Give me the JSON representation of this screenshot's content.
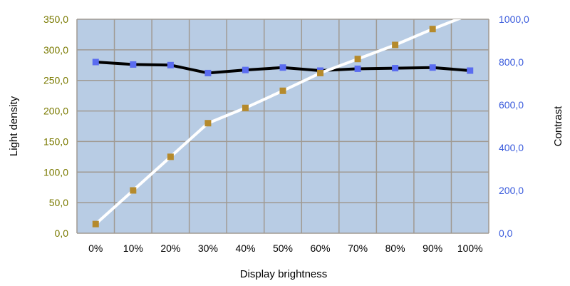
{
  "chart_data": {
    "type": "line",
    "xlabel": "Display brightness",
    "ylabel_left": "Light density",
    "ylabel_right": "Contrast",
    "categories": [
      "0%",
      "10%",
      "20%",
      "30%",
      "40%",
      "50%",
      "60%",
      "70%",
      "80%",
      "90%",
      "100%"
    ],
    "y_left_range": [
      0,
      350
    ],
    "y_left_ticks": [
      "0,0",
      "50,0",
      "100,0",
      "150,0",
      "200,0",
      "250,0",
      "300,0",
      "350,0"
    ],
    "y_right_range": [
      0,
      1000
    ],
    "y_right_ticks": [
      "0,0",
      "200,0",
      "400,0",
      "600,0",
      "800,0",
      "1000,0"
    ],
    "grid": true,
    "series": [
      {
        "axis": "left",
        "color": "#000000",
        "marker_color": "#5a6cf0",
        "values": [
          280,
          276,
          275,
          262,
          267,
          271,
          266,
          269,
          270,
          271,
          266
        ]
      },
      {
        "axis": "left",
        "color": "#ffffff",
        "marker_color": "#b58a2c",
        "values": [
          15,
          70,
          125,
          180,
          205,
          233,
          262,
          285,
          308,
          334,
          358
        ]
      }
    ],
    "colors": {
      "plot_background": "#b8cce4",
      "grid": "#a09a92",
      "left_tick_color": "#7a7a00",
      "right_tick_color": "#3a5bdc"
    }
  }
}
